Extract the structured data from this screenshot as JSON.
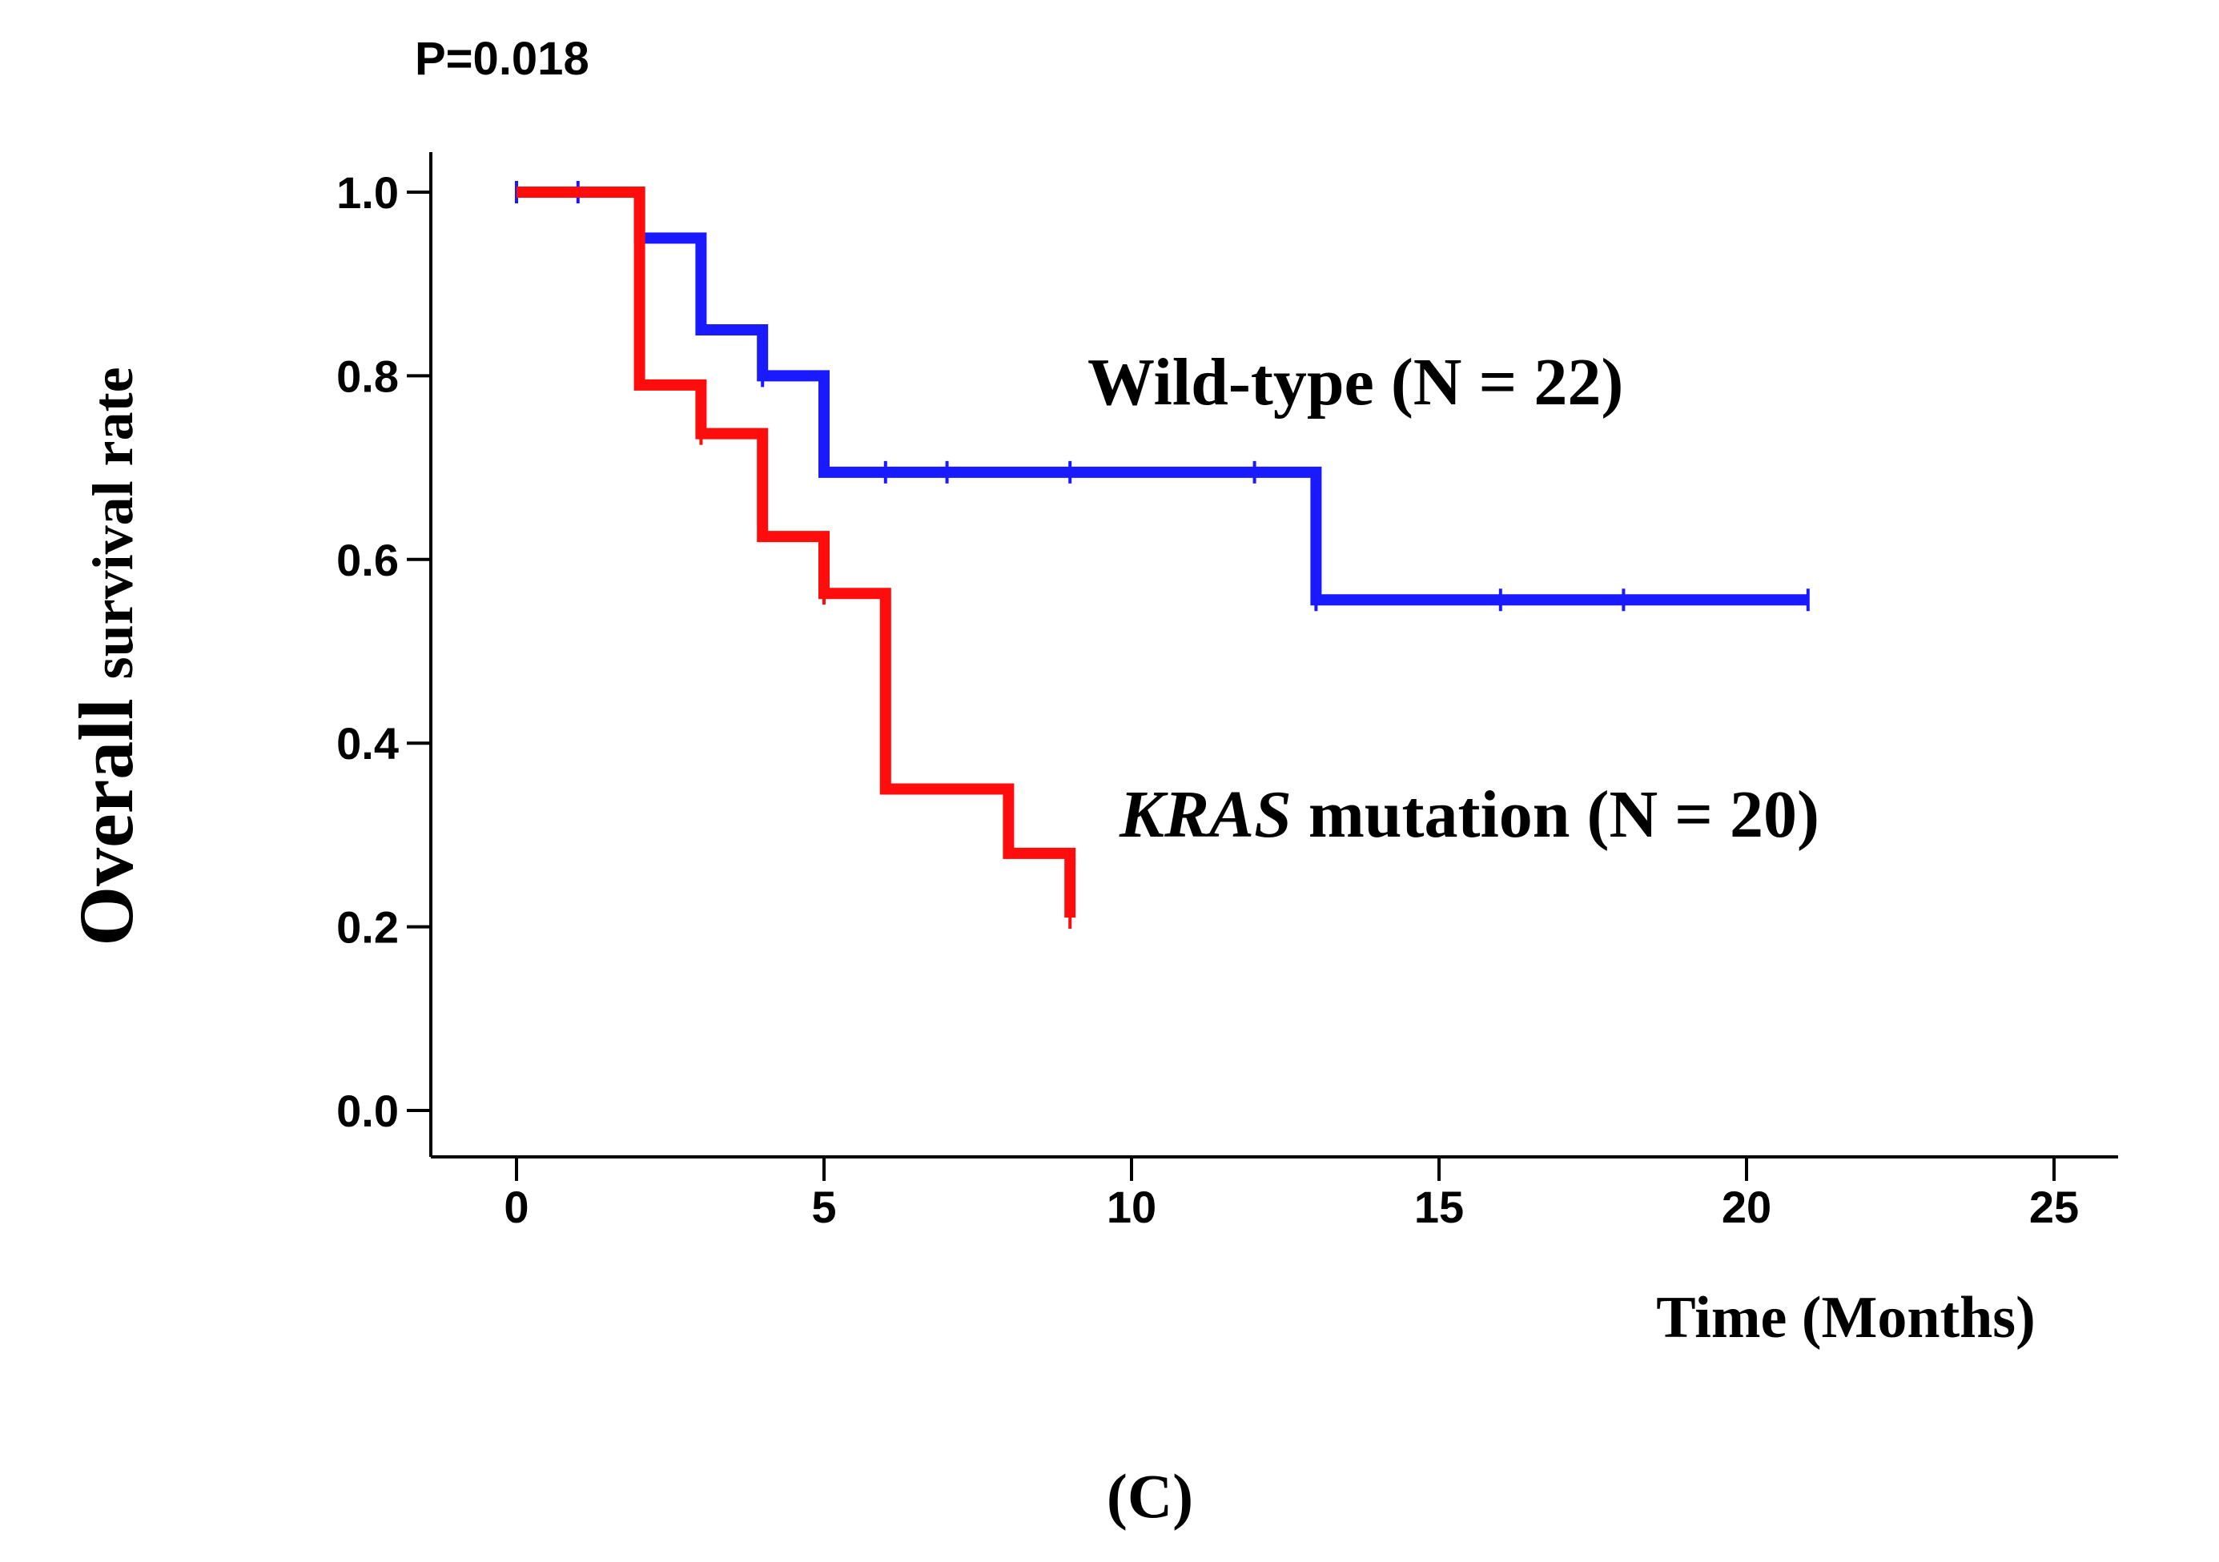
{
  "chart_data": {
    "type": "line",
    "subtype": "kaplan-meier step",
    "annotation": "P=0.018",
    "xlabel": "Time (Months)",
    "ylabel": {
      "prefix": "Overall ",
      "rest": "survival rate"
    },
    "panel_label": "(C)",
    "xlim": [
      0,
      25
    ],
    "ylim": [
      0,
      1.0
    ],
    "xticks": [
      "0",
      "5",
      "10",
      "15",
      "20",
      "25"
    ],
    "yticks": [
      "0.0",
      "0.2",
      "0.4",
      "0.6",
      "0.8",
      "1.0"
    ],
    "series": [
      {
        "name": "Wild-type",
        "label": "Wild-type (N = 22)",
        "label_italic": "",
        "label_rest": "Wild-type (N = 22)",
        "color": "#1a1aff",
        "steps": [
          [
            0,
            1.0
          ],
          [
            2,
            0.95
          ],
          [
            3,
            0.85
          ],
          [
            4,
            0.8
          ],
          [
            5,
            0.695
          ],
          [
            13,
            0.556
          ]
        ],
        "end_x": 21,
        "censored": [
          [
            0,
            1.0
          ],
          [
            1,
            1.0
          ],
          [
            4,
            0.8
          ],
          [
            6,
            0.695
          ],
          [
            7,
            0.695
          ],
          [
            9,
            0.695
          ],
          [
            12,
            0.695
          ],
          [
            13,
            0.556
          ],
          [
            16,
            0.556
          ],
          [
            18,
            0.556
          ],
          [
            21,
            0.556
          ]
        ]
      },
      {
        "name": "KRAS mutation",
        "label": "KRAS mutation (N = 20)",
        "label_italic": "KRAS",
        "label_rest": " mutation (N = 20)",
        "color": "#ff0d0d",
        "steps": [
          [
            0,
            1.0
          ],
          [
            2,
            0.79
          ],
          [
            3,
            0.737
          ],
          [
            4,
            0.625
          ],
          [
            5,
            0.563
          ],
          [
            6,
            0.35
          ],
          [
            8,
            0.28
          ],
          [
            9,
            0.21
          ]
        ],
        "end_x": 9,
        "censored": [
          [
            3,
            0.737
          ],
          [
            5,
            0.563
          ],
          [
            9,
            0.21
          ]
        ]
      }
    ]
  }
}
